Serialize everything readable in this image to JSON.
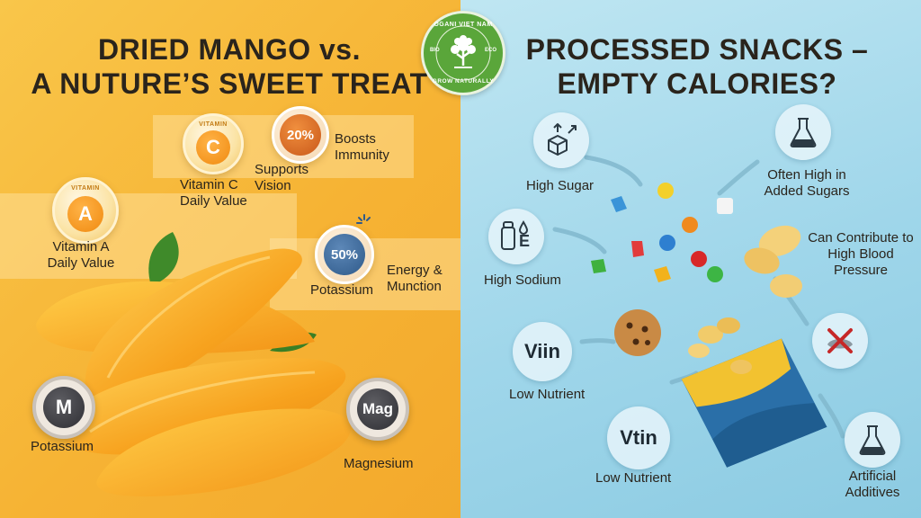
{
  "logo": {
    "top_text": "OGANI VIET NAM",
    "bottom_text": "GROW NATURALLY",
    "side_left": "BIO",
    "side_right": "ECO",
    "accent": "#5aa63a"
  },
  "left": {
    "title_line1": "DRIED MANGO vs.",
    "title_line2": "A NUTURE’S SWEET TREAT",
    "vitamin_c": {
      "tiny": "VITAMIN",
      "letter": "C",
      "label_line1": "Vitamin C",
      "label_line2": "Daily Value"
    },
    "pct20": {
      "value": "20%",
      "label_line1": "Supports",
      "label_line2": "Vision"
    },
    "boosts": {
      "label_line1": "Boosts",
      "label_line2": "Immunity"
    },
    "vitamin_a": {
      "tiny": "VITAMIN",
      "letter": "A",
      "label_line1": "Vitamin A",
      "label_line2": "Daily Value"
    },
    "pct50": {
      "value": "50%",
      "label": "Potassium"
    },
    "energy": {
      "label_line1": "Energy &",
      "label_line2": "Munction"
    },
    "m_badge": {
      "letter": "M",
      "label": "Potassium"
    },
    "mag_badge": {
      "letter": "Mag",
      "label": "Magnesium"
    }
  },
  "right": {
    "title_line1": "PROCESSED SNACKS –",
    "title_line2": "EMPTY CALORIES?",
    "high_sugar": "High Sugar",
    "added_sugars_line1": "Often High in",
    "added_sugars_line2": "Added Sugars",
    "high_sodium": "High Sodium",
    "sodium_icon_letter": "E",
    "blood_pressure_line1": "Can Contribute to",
    "blood_pressure_line2": "High Blood",
    "blood_pressure_line3": "Pressure",
    "viin": "Viin",
    "low_nutrient_1": "Low Nutrient",
    "vtin": "Vtin",
    "low_nutrient_2": "Low Nutrient",
    "additives_line1": "Artificial",
    "additives_line2": "Additives"
  },
  "colors": {
    "mango": "#f5a623",
    "bag_blue": "#2a6fa8",
    "bag_yellow": "#f2c230"
  }
}
